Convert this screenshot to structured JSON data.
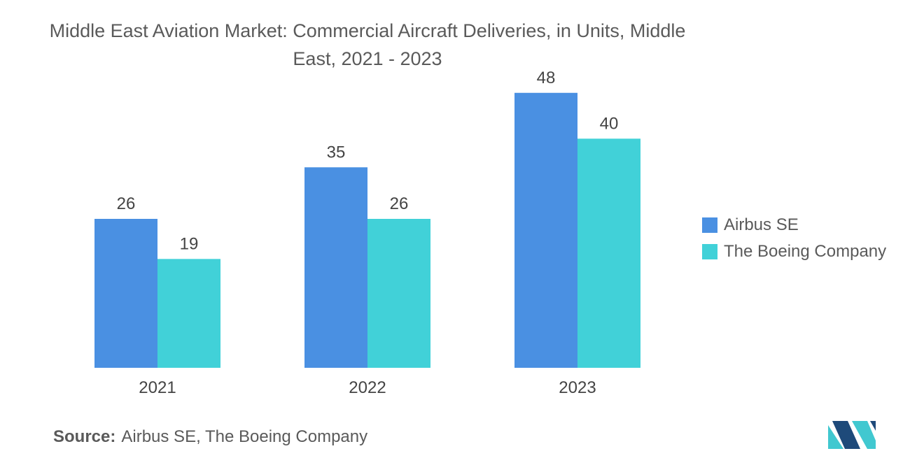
{
  "chart_data": {
    "type": "bar",
    "title": "Middle East Aviation Market: Commercial Aircraft Deliveries, in Units, Middle East, 2021 - 2023",
    "categories": [
      "2021",
      "2022",
      "2023"
    ],
    "series": [
      {
        "name": "Airbus SE",
        "values": [
          26,
          35,
          48
        ],
        "color": "#4a90e2"
      },
      {
        "name": "The Boeing Company",
        "values": [
          19,
          26,
          40
        ],
        "color": "#41d1d8"
      }
    ],
    "ylim": [
      0,
      52
    ],
    "grid": false,
    "legend_placement": "right"
  },
  "source": {
    "label": "Source:",
    "text": "Airbus SE, The Boeing Company"
  },
  "colors": {
    "logo_dark": "#1e4a7a",
    "logo_light": "#41c8d0"
  }
}
